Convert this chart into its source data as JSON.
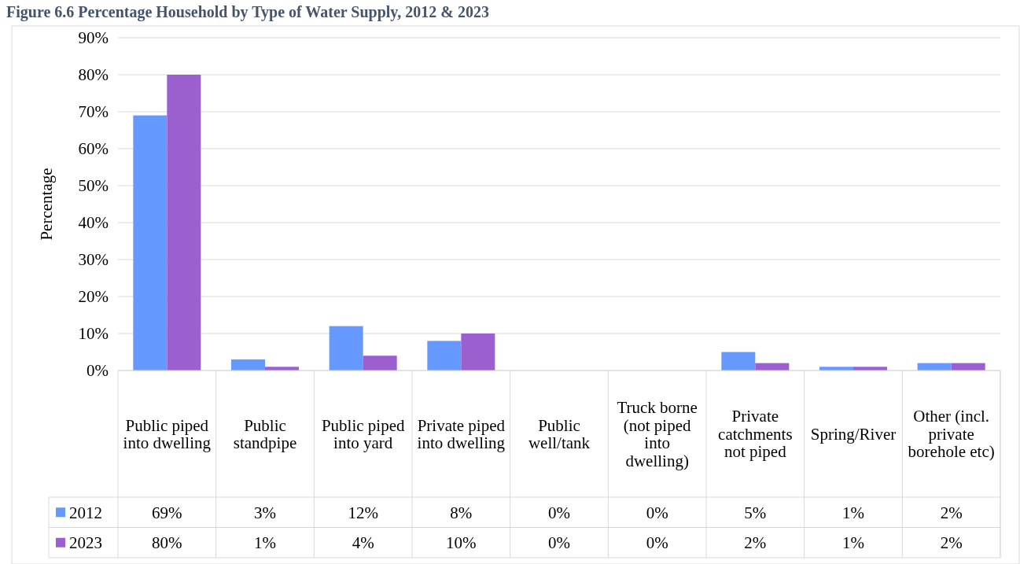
{
  "chart_data": {
    "type": "bar",
    "title": "Figure 6.6 Percentage Household by Type of Water Supply, 2012 & 2023",
    "ylabel": "Percentage",
    "categories": [
      "Public piped into dwelling",
      "Public standpipe",
      "Public piped into yard",
      "Private piped into dwelling",
      "Public well/tank",
      "Truck borne (not piped into dwelling)",
      "Private catchments not piped",
      "Spring/River",
      "Other (incl. private borehole etc)"
    ],
    "series": [
      {
        "name": "2012",
        "color": "#6699ff",
        "values": [
          69,
          3,
          12,
          8,
          0,
          0,
          5,
          1,
          2
        ],
        "value_labels": [
          "69%",
          "3%",
          "12%",
          "8%",
          "0%",
          "0%",
          "5%",
          "1%",
          "2%"
        ]
      },
      {
        "name": "2023",
        "color": "#9c5fcf",
        "values": [
          80,
          1,
          4,
          10,
          0,
          0,
          2,
          1,
          2
        ],
        "value_labels": [
          "80%",
          "1%",
          "4%",
          "10%",
          "0%",
          "0%",
          "2%",
          "1%",
          "2%"
        ]
      }
    ],
    "ylim": [
      0,
      90
    ],
    "yticks": [
      {
        "value": 0,
        "label": "0%"
      },
      {
        "value": 10,
        "label": "10%"
      },
      {
        "value": 20,
        "label": "20%"
      },
      {
        "value": 30,
        "label": "30%"
      },
      {
        "value": 40,
        "label": "40%"
      },
      {
        "value": 50,
        "label": "50%"
      },
      {
        "value": 60,
        "label": "60%"
      },
      {
        "value": 70,
        "label": "70%"
      },
      {
        "value": 80,
        "label": "80%"
      },
      {
        "value": 90,
        "label": "90%"
      }
    ],
    "grid": "y",
    "legend": "bottom"
  }
}
